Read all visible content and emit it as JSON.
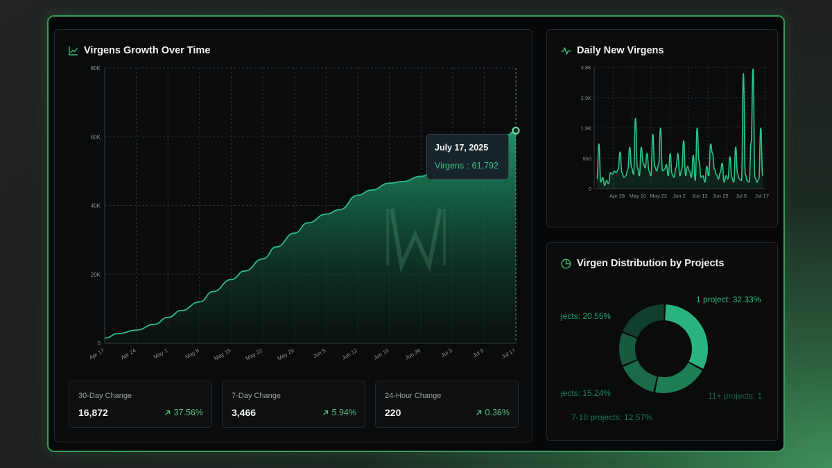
{
  "main": {
    "title": "Virgens Growth Over Time",
    "tooltip": {
      "date": "July 17, 2025",
      "label": "Virgens",
      "sep": ":",
      "value": "61,792"
    },
    "stats": [
      {
        "label": "30-Day Change",
        "value": "16,872",
        "change": "37.56%"
      },
      {
        "label": "7-Day Change",
        "value": "3,466",
        "change": "5.94%"
      },
      {
        "label": "24-Hour Change",
        "value": "220",
        "change": "0.36%"
      }
    ]
  },
  "daily": {
    "title": "Daily New Virgens"
  },
  "distribution": {
    "title": "Virgen Distribution by Projects",
    "labels": [
      "1 project: 32.33%",
      "jects: 20.55%",
      "jects: 15.24%",
      "7-10 projects: 12.57%",
      "11+ projects: 1"
    ]
  },
  "colors": {
    "accent": "#2fa878",
    "frame_border": "#3c9b5b",
    "positive": "#58c07e"
  },
  "chart_data": [
    {
      "type": "area",
      "title": "Virgens Growth Over Time",
      "x_ticks": [
        "Apr 17",
        "Apr 24",
        "May 1",
        "May 8",
        "May 15",
        "May 22",
        "May 29",
        "Jun 5",
        "Jun 12",
        "Jun 19",
        "Jun 26",
        "Jul 3",
        "Jul 9",
        "Jul 17"
      ],
      "y_ticks": [
        "0",
        "20K",
        "40K",
        "60K",
        "80K"
      ],
      "ylim": [
        0,
        80000
      ],
      "grid": true,
      "series": [
        {
          "x": [
            "Apr 17",
            "Apr 20",
            "Apr 24",
            "Apr 28",
            "May 1",
            "May 4",
            "May 8",
            "May 11",
            "May 15",
            "May 18",
            "May 22",
            "May 25",
            "May 29",
            "Jun 1",
            "Jun 5",
            "Jun 8",
            "Jun 12",
            "Jun 15",
            "Jun 19",
            "Jun 22",
            "Jun 26",
            "Jun 29",
            "Jul 3",
            "Jul 6",
            "Jul 9",
            "Jul 12",
            "Jul 15",
            "Jul 17"
          ],
          "values": [
            1500,
            2800,
            3800,
            5500,
            7500,
            9500,
            12000,
            15000,
            18500,
            21000,
            24500,
            28000,
            32000,
            35000,
            37500,
            38800,
            43000,
            44500,
            46500,
            47000,
            48500,
            50000,
            52000,
            54000,
            56000,
            58500,
            60500,
            61792
          ]
        }
      ]
    },
    {
      "type": "line",
      "title": "Daily New Virgens",
      "x_ticks": [
        "Apr 28",
        "May 10",
        "May 22",
        "Jun 2",
        "Jun 13",
        "Jun 25",
        "Jul 5",
        "Jul 17"
      ],
      "y_ticks": [
        "0",
        "950",
        "1.9K",
        "2.9K",
        "3.8K"
      ],
      "ylim": [
        0,
        3800
      ],
      "series": [
        {
          "values": [
            300,
            1400,
            200,
            350,
            100,
            250,
            150,
            500,
            450,
            550,
            500,
            600,
            1150,
            500,
            350,
            400,
            600,
            1300,
            650,
            450,
            2200,
            650,
            400,
            1300,
            800,
            650,
            1100,
            550,
            400,
            1700,
            700,
            550,
            750,
            1900,
            550,
            600,
            750,
            400,
            1100,
            450,
            350,
            650,
            1100,
            400,
            600,
            1500,
            400,
            700,
            550,
            350,
            1050,
            250,
            1900,
            850,
            350,
            400,
            200,
            700,
            400,
            1400,
            1100,
            600,
            450,
            300,
            500,
            800,
            200,
            400,
            300,
            1000,
            350,
            200,
            1300,
            450,
            300,
            250,
            3600,
            450,
            250,
            200,
            1450,
            3750,
            350,
            200,
            300,
            1900,
            400
          ]
        }
      ]
    },
    {
      "type": "pie",
      "title": "Virgen Distribution by Projects",
      "categories": [
        "1 project",
        "jects",
        "jects",
        "7-10 projects",
        "11+ projects"
      ],
      "values": [
        32.33,
        20.55,
        15.24,
        12.57,
        19.31
      ]
    }
  ]
}
